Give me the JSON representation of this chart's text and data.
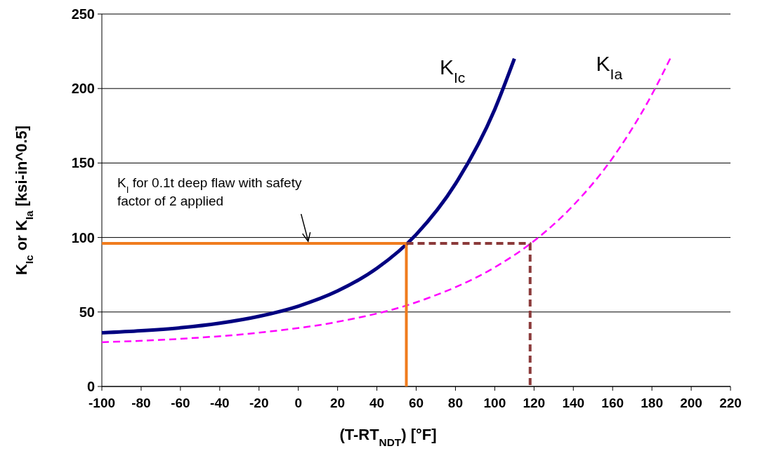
{
  "chart_data": {
    "type": "line",
    "xlabel": "(T-RT$_{NDT}$)  [°F]",
    "ylabel": "K$_{Ic}$ or K$_{Ia}$ [ksi-in^0.5]",
    "xlim": [
      -100,
      220
    ],
    "xticks": [
      -100,
      -80,
      -60,
      -40,
      -20,
      0,
      20,
      40,
      60,
      80,
      100,
      120,
      140,
      160,
      180,
      200,
      220
    ],
    "ylim": [
      0,
      250
    ],
    "yticks": [
      0,
      50,
      100,
      150,
      200,
      250
    ],
    "grid": "y",
    "series": [
      {
        "name": "K$_{Ic}$",
        "color": "#000080",
        "line_style": "solid",
        "x": [
          -100,
          -80,
          -60,
          -40,
          -20,
          0,
          20,
          40,
          60,
          80,
          100,
          110
        ],
        "values": [
          36,
          37.4,
          39.4,
          42.5,
          47.1,
          53.9,
          64.1,
          79.3,
          102,
          136,
          186,
          220
        ]
      },
      {
        "name": "K$_{Ia}$",
        "color": "#ff00ff",
        "line_style": "dashed",
        "x": [
          -100,
          -60,
          -20,
          20,
          60,
          100,
          120,
          140,
          160,
          180,
          190
        ],
        "values": [
          29.7,
          32,
          36.1,
          43.4,
          56.5,
          80,
          97.7,
          121.6,
          153.4,
          196,
          222
        ]
      },
      {
        "color": "#f07c1e",
        "line_style": "solid",
        "x": [
          -100,
          55,
          55
        ],
        "values": [
          96,
          96,
          0
        ]
      },
      {
        "color": "#8b3a3a",
        "line_style": "dashed",
        "x": [
          55,
          118,
          118
        ],
        "values": [
          96,
          96,
          0
        ]
      }
    ],
    "annotations": [
      {
        "text": "K$_{I}$ for 0.1t deep flaw with safety factor of 2 applied",
        "x": 5,
        "y": 96
      }
    ]
  }
}
